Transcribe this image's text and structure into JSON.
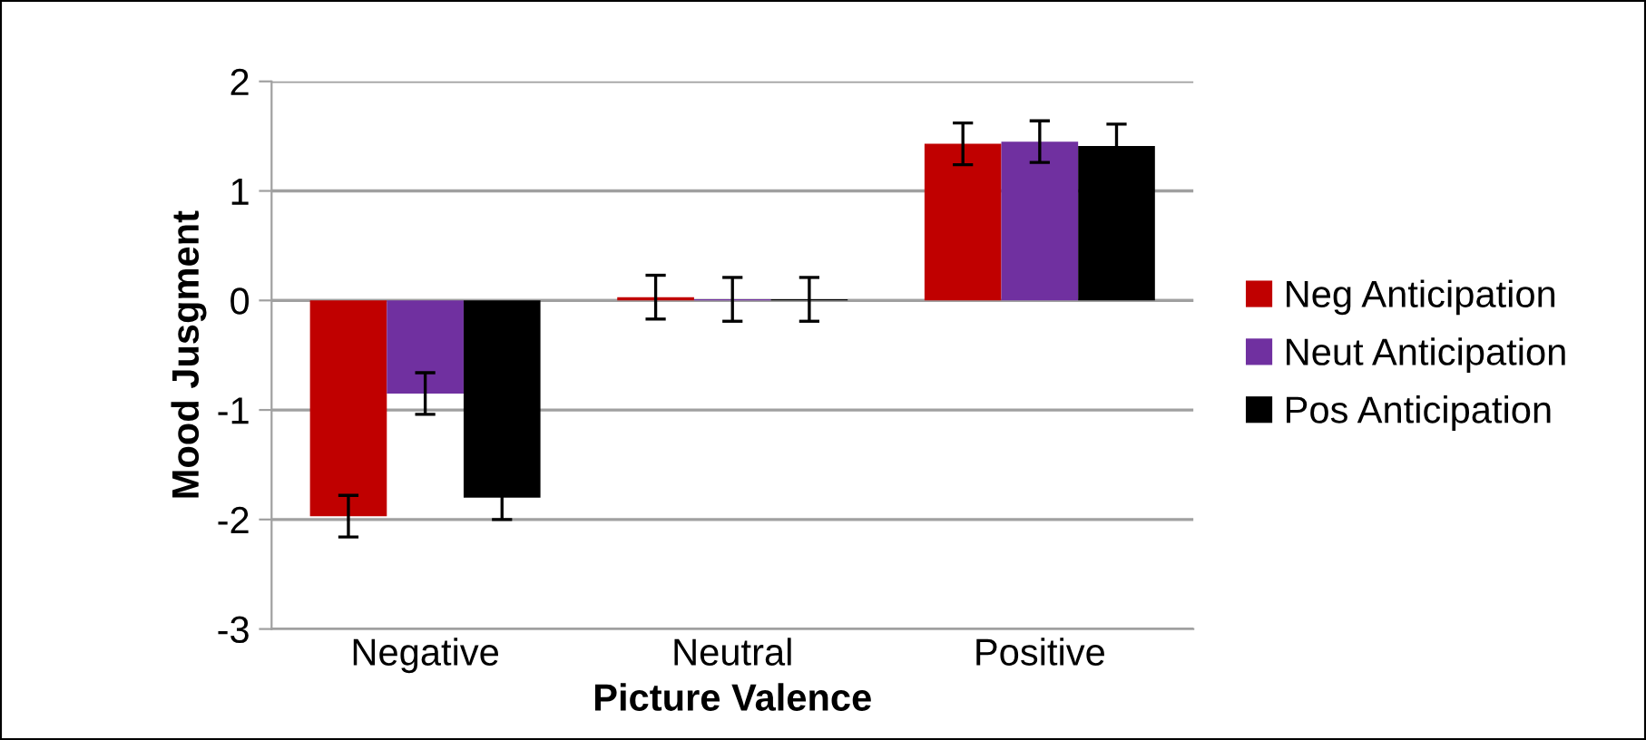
{
  "chart_data": {
    "type": "bar",
    "xlabel": "Picture Valence",
    "ylabel": "Mood Jusgment",
    "categories": [
      "Negative",
      "Neutral",
      "Positive"
    ],
    "series": [
      {
        "name": "Neg Anticipation",
        "color": "#c00000",
        "values": [
          -1.97,
          0.03,
          1.43
        ],
        "errors": [
          0.19,
          0.2,
          0.19
        ]
      },
      {
        "name": "Neut Anticipation",
        "color": "#7030a0",
        "values": [
          -0.85,
          0.01,
          1.45
        ],
        "errors": [
          0.19,
          0.2,
          0.19
        ]
      },
      {
        "name": "Pos Anticipation",
        "color": "#000000",
        "values": [
          -1.8,
          0.01,
          1.41
        ],
        "errors": [
          0.2,
          0.2,
          0.2
        ]
      }
    ],
    "ylim": [
      -3,
      2
    ],
    "yticks": [
      -3,
      -2,
      -1,
      0,
      1,
      2
    ],
    "grid": "y",
    "legend": "right"
  }
}
